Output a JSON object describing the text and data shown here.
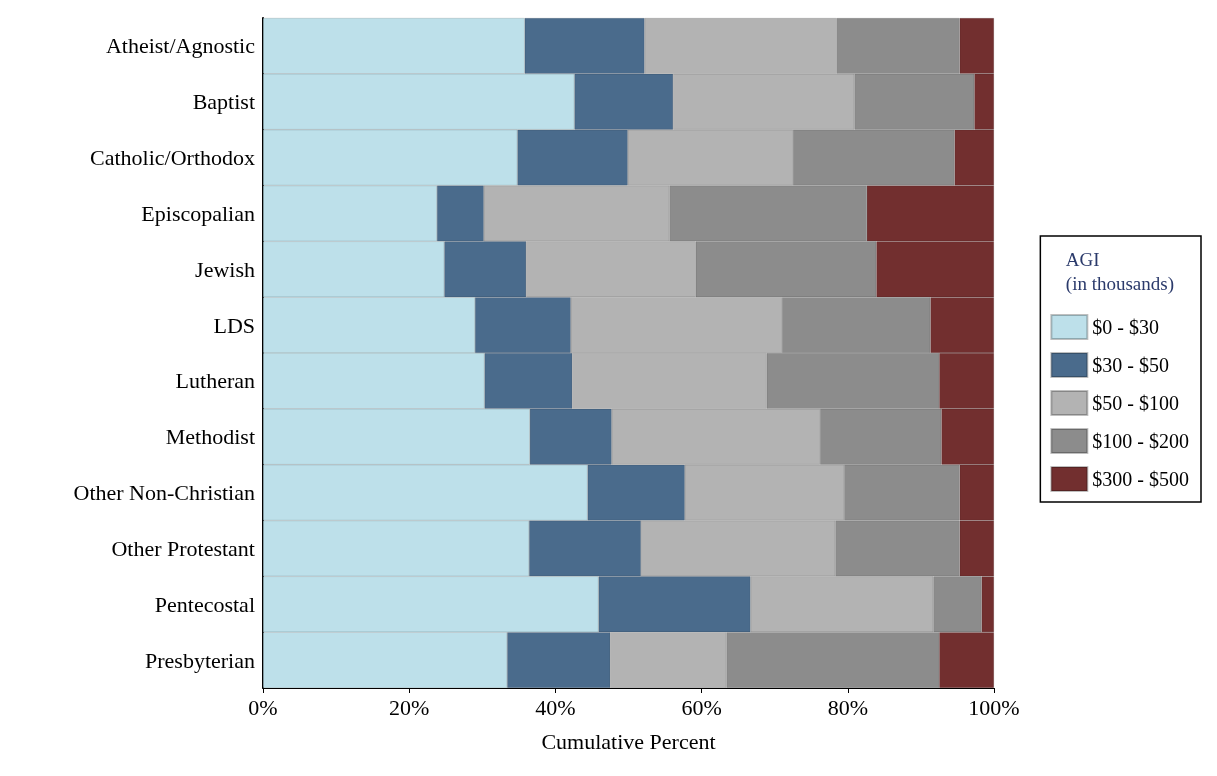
{
  "chart_data": {
    "type": "bar",
    "orientation": "horizontal",
    "stacked": true,
    "xlabel": "Cumulative Percent",
    "legend_title": "AGI\n(in thousands)",
    "legend": "right",
    "grid": false,
    "categories": [
      "Atheist/Agnostic",
      "Baptist",
      "Catholic/Orthodox",
      "Episcopalian",
      "Jewish",
      "LDS",
      "Lutheran",
      "Methodist",
      "Other Non-Christian",
      "Other Protestant",
      "Pentecostal",
      "Presbyterian"
    ],
    "xlim": [
      0,
      100
    ],
    "xticks": [
      {
        "value": 0,
        "label": "0%"
      },
      {
        "value": 20,
        "label": "20%"
      },
      {
        "value": 40,
        "label": "40%"
      },
      {
        "value": 60,
        "label": "60%"
      },
      {
        "value": 80,
        "label": "80%"
      },
      {
        "value": 100,
        "label": "100%"
      }
    ],
    "series": [
      {
        "name": "$0 - $30",
        "color": "#bde0ea",
        "values": [
          35.8,
          42.6,
          34.8,
          23.8,
          24.8,
          29.0,
          30.3,
          36.5,
          44.4,
          36.4,
          45.9,
          33.4
        ]
      },
      {
        "name": "$30 - $50",
        "color": "#4a6b8c",
        "values": [
          16.4,
          13.5,
          15.1,
          6.4,
          11.2,
          13.1,
          12.0,
          11.2,
          13.3,
          15.3,
          20.8,
          14.1
        ]
      },
      {
        "name": "$50 - $100",
        "color": "#b3b3b3",
        "values": [
          26.3,
          24.8,
          22.6,
          25.4,
          23.2,
          28.9,
          26.6,
          28.5,
          21.8,
          26.6,
          25.0,
          15.9
        ]
      },
      {
        "name": "$100 - $200",
        "color": "#8c8c8c",
        "values": [
          16.8,
          16.4,
          22.1,
          27.0,
          24.7,
          20.3,
          23.6,
          16.6,
          15.8,
          17.0,
          6.6,
          29.1
        ]
      },
      {
        "name": "$300 - $500",
        "color": "#722f2f",
        "values": [
          4.7,
          2.7,
          5.4,
          17.4,
          16.1,
          8.7,
          7.5,
          7.2,
          4.7,
          4.7,
          1.7,
          7.5
        ]
      }
    ]
  }
}
